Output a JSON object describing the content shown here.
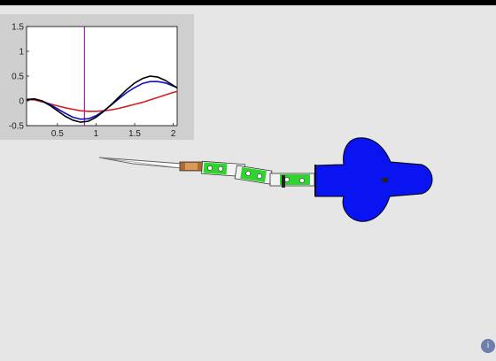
{
  "chart_data": {
    "type": "line",
    "title": "",
    "xlabel": "",
    "ylabel": "",
    "xlim": [
      0.1,
      2.05
    ],
    "ylim": [
      -0.5,
      1.5
    ],
    "xticks": [
      "0.5",
      "1",
      "1.5",
      "2"
    ],
    "xtick_values": [
      0.5,
      1,
      1.5,
      2
    ],
    "yticks": [
      "-0.5",
      "0",
      "0.5",
      "1",
      "1.5"
    ],
    "ytick_values": [
      -0.5,
      0,
      0.5,
      1,
      1.5
    ],
    "grid": false,
    "vertical_marker": {
      "x": 0.85,
      "color": "#a020b0"
    },
    "series": [
      {
        "color": "#d42020",
        "x": [
          0.1,
          0.2,
          0.3,
          0.4,
          0.5,
          0.6,
          0.7,
          0.8,
          0.9,
          1.0,
          1.1,
          1.2,
          1.3,
          1.4,
          1.5,
          1.6,
          1.7,
          1.8,
          1.9,
          2.0,
          2.05
        ],
        "y": [
          0.03,
          0.02,
          -0.02,
          -0.06,
          -0.1,
          -0.14,
          -0.17,
          -0.2,
          -0.21,
          -0.21,
          -0.2,
          -0.18,
          -0.15,
          -0.11,
          -0.07,
          -0.03,
          0.02,
          0.07,
          0.12,
          0.17,
          0.19
        ]
      },
      {
        "color": "#1010c8",
        "x": [
          0.1,
          0.2,
          0.3,
          0.4,
          0.5,
          0.6,
          0.7,
          0.8,
          0.9,
          1.0,
          1.1,
          1.2,
          1.3,
          1.4,
          1.5,
          1.6,
          1.7,
          1.8,
          1.9,
          2.0,
          2.05
        ],
        "y": [
          0.03,
          0.04,
          0.0,
          -0.07,
          -0.16,
          -0.25,
          -0.33,
          -0.37,
          -0.36,
          -0.3,
          -0.2,
          -0.08,
          0.05,
          0.17,
          0.27,
          0.35,
          0.39,
          0.39,
          0.36,
          0.3,
          0.27
        ]
      },
      {
        "color": "#000000",
        "x": [
          0.1,
          0.2,
          0.3,
          0.4,
          0.5,
          0.6,
          0.7,
          0.8,
          0.9,
          1.0,
          1.1,
          1.2,
          1.3,
          1.4,
          1.5,
          1.6,
          1.7,
          1.8,
          1.9,
          2.0,
          2.05
        ],
        "y": [
          0.02,
          0.04,
          0.0,
          -0.09,
          -0.2,
          -0.31,
          -0.39,
          -0.43,
          -0.41,
          -0.33,
          -0.21,
          -0.07,
          0.08,
          0.23,
          0.36,
          0.45,
          0.5,
          0.48,
          0.41,
          0.31,
          0.26
        ]
      }
    ]
  },
  "scene": {
    "body_color": "#0a14f0",
    "segment_color": "#2fd42f",
    "tail_color": "#b06a2e"
  },
  "corner_button": {
    "icon": "info-icon",
    "label": "i"
  }
}
